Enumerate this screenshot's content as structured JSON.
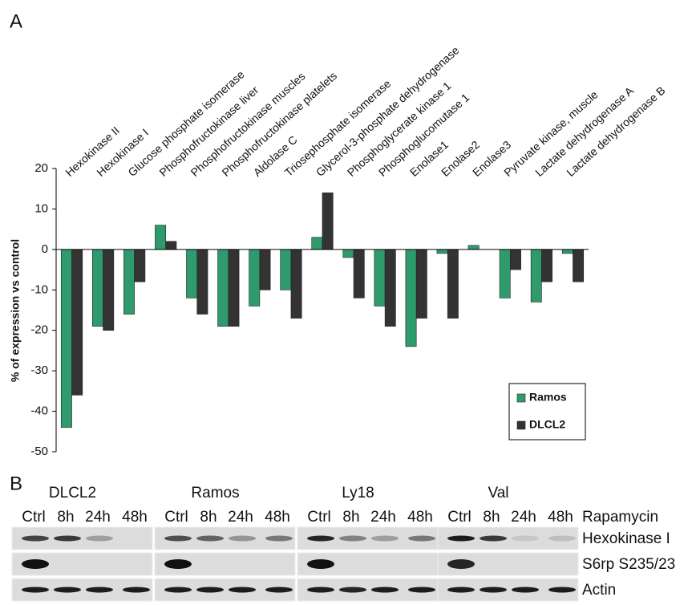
{
  "panel_a_label": "A",
  "chart_data": {
    "type": "bar",
    "y_label": "% of expression vs control",
    "categories": [
      "Hexokinase II",
      "Hexokinase I",
      "Glucose phosphate isomerase",
      "Phosphofructokinase liver",
      "Phosphofructokinase muscles",
      "Phosphofructokinase platelets",
      "Aldolase C",
      "Triosephosphate isomerase",
      "Glycerol-3-phosphate dehydrogenase",
      "Phosphoglycerate kinase 1",
      "Phosphoglucomutase 1",
      "Enolase1",
      "Enolase2",
      "Enolase3",
      "Pyruvate kinase, muscle",
      "Lactate dehydrogenase A",
      "Lactate dehydrogenase B"
    ],
    "series": [
      {
        "name": "Ramos",
        "color": "#2f9a6b",
        "values": [
          -44,
          -19,
          -16,
          6,
          -12,
          -19,
          -14,
          -10,
          3,
          -2,
          -14,
          -24,
          -1,
          1,
          -12,
          -13,
          -1
        ]
      },
      {
        "name": "DLCL2",
        "color": "#333333",
        "values": [
          -36,
          -20,
          -8,
          2,
          -16,
          -19,
          -10,
          -17,
          14,
          -12,
          -19,
          -17,
          -17,
          0,
          -5,
          -8,
          -8
        ]
      }
    ],
    "ylim": [
      -50,
      20
    ],
    "yticks": [
      20,
      10,
      0,
      -10,
      -20,
      -30,
      -40,
      -50
    ],
    "grid": false,
    "legend": "lower right"
  },
  "panel_b": {
    "label": "B",
    "cell_lines": [
      "DLCL2",
      "Ramos",
      "Ly18",
      "Val"
    ],
    "lanes": [
      "Ctrl",
      "8h",
      "24h",
      "48h"
    ],
    "treatment": "Rapamycin",
    "rows": [
      "Hexokinase I",
      "S6rp S235/23",
      "Actin"
    ]
  }
}
